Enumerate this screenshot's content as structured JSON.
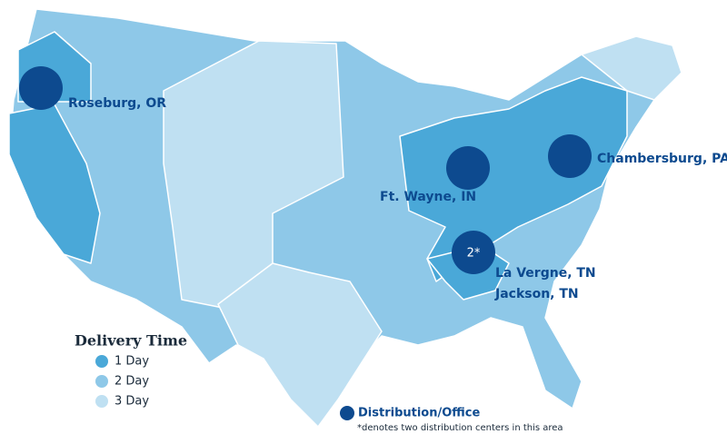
{
  "legend": {
    "title": "Delivery Time",
    "items": [
      {
        "label": "1 Day",
        "color": "#4aa8d8"
      },
      {
        "label": "2 Day",
        "color": "#8ec8e8"
      },
      {
        "label": "3 Day",
        "color": "#bfe0f2"
      }
    ]
  },
  "locations": [
    {
      "name": "Roseburg, OR"
    },
    {
      "name": "Ft. Wayne, IN"
    },
    {
      "name": "Chambersburg, PA"
    },
    {
      "name": "La Vergne, TN"
    },
    {
      "name": "Jackson, TN"
    }
  ],
  "cluster_label": "2*",
  "marker_legend": {
    "label": "Distribution/Office",
    "note": "*denotes two distribution centers in this area"
  }
}
